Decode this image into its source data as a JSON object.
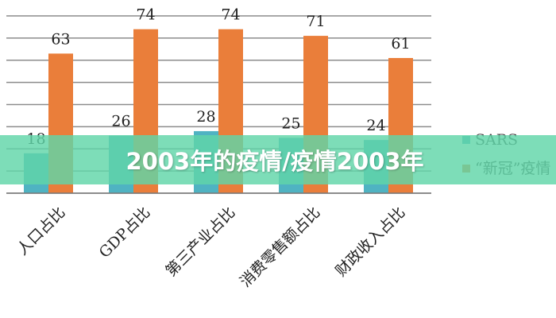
{
  "chart_data": {
    "type": "bar",
    "categories": [
      "人口占比",
      "GDP占比",
      "第三产业占比",
      "消费零售额占比",
      "财政收入占比"
    ],
    "series": [
      {
        "name": "SARS",
        "values": [
          18,
          26,
          28,
          25,
          24
        ],
        "color": "#4fb3c2"
      },
      {
        "name": "“新冠”疫情",
        "values": [
          63,
          74,
          74,
          71,
          61
        ],
        "color": "#ea7e3a"
      }
    ],
    "ylim": [
      0,
      80
    ],
    "grid": true,
    "legend_position": "right",
    "colors": {
      "background": "#ffffff",
      "grid": "#8c8c8c",
      "banner": "#60d6a8"
    }
  },
  "overlay": {
    "title": "2003年的疫情/疫情2003年"
  }
}
